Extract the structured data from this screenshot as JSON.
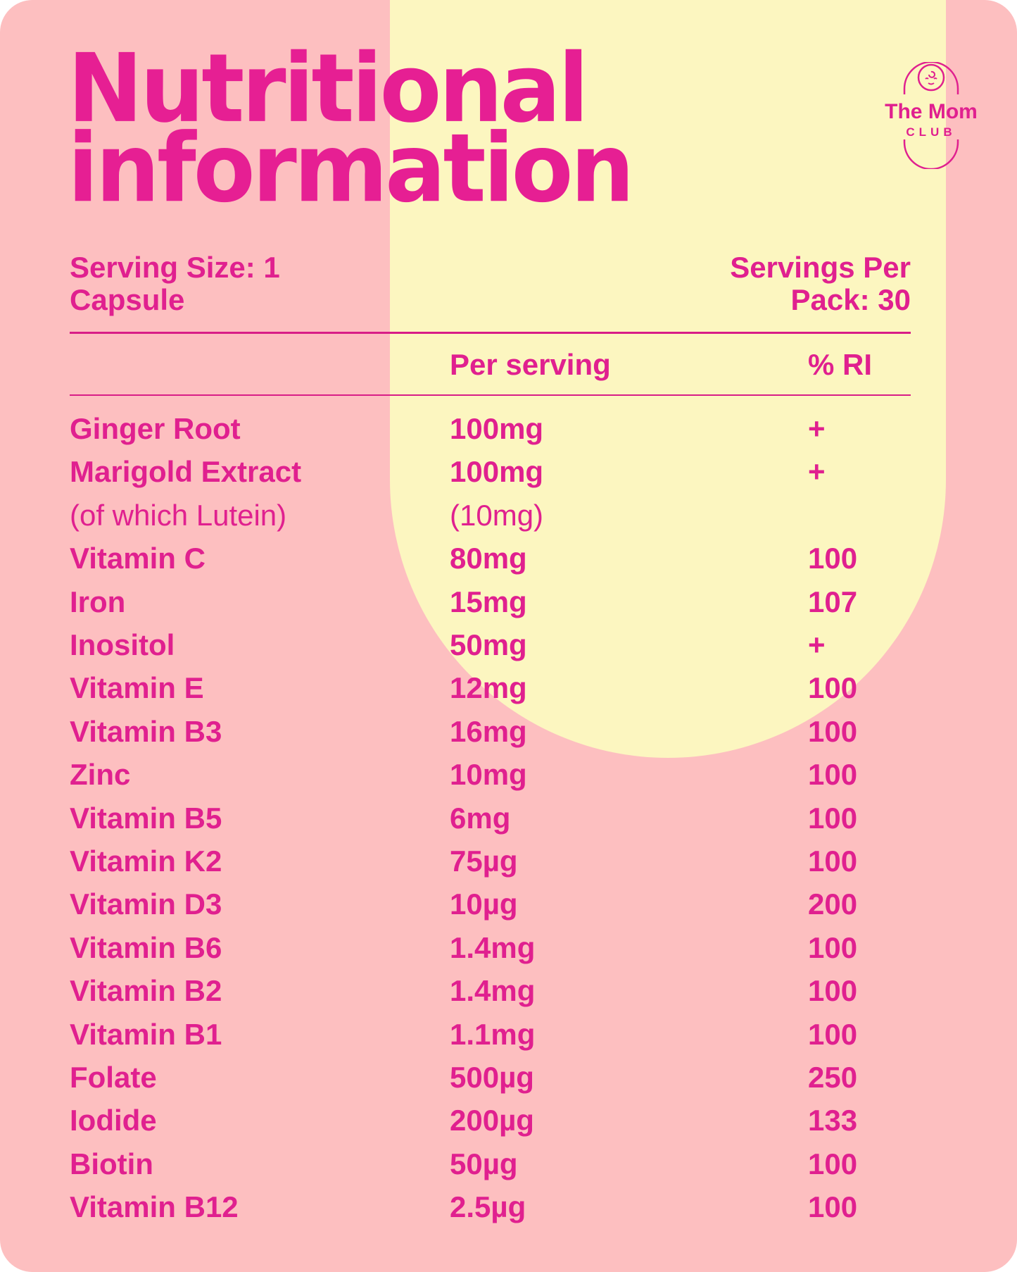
{
  "title_lines": [
    "Nutritional",
    "information"
  ],
  "brand": {
    "line1": "The Mom",
    "line2": "CLUB",
    "icon": "baby-capsule-logo-icon"
  },
  "serving_size": {
    "line1": "Serving Size: 1",
    "line2": "Capsule"
  },
  "servings_per_pack": {
    "line1": "Servings Per",
    "line2": "Pack: 30"
  },
  "columns": {
    "per_serving": "Per serving",
    "ri": "% RI"
  },
  "rows": [
    {
      "name": "Ginger Root",
      "amount": "100mg",
      "ri": "+"
    },
    {
      "name": "Marigold Extract",
      "amount": "100mg",
      "ri": "+"
    },
    {
      "name": "(of which Lutein)",
      "amount": "(10mg)",
      "ri": ""
    },
    {
      "name": "Vitamin C",
      "amount": "80mg",
      "ri": "100"
    },
    {
      "name": "Iron",
      "amount": "15mg",
      "ri": "107"
    },
    {
      "name": "Inositol",
      "amount": "50mg",
      "ri": "+"
    },
    {
      "name": "Vitamin E",
      "amount": "12mg",
      "ri": "100"
    },
    {
      "name": "Vitamin B3",
      "amount": "16mg",
      "ri": "100"
    },
    {
      "name": "Zinc",
      "amount": "10mg",
      "ri": "100"
    },
    {
      "name": "Vitamin B5",
      "amount": "6mg",
      "ri": "100"
    },
    {
      "name": "Vitamin K2",
      "amount": "75µg",
      "ri": "100"
    },
    {
      "name": "Vitamin D3",
      "amount": "10µg",
      "ri": "200"
    },
    {
      "name": "Vitamin B6",
      "amount": "1.4mg",
      "ri": "100"
    },
    {
      "name": "Vitamin B2",
      "amount": "1.4mg",
      "ri": "100"
    },
    {
      "name": "Vitamin B1",
      "amount": "1.1mg",
      "ri": "100"
    },
    {
      "name": "Folate",
      "amount": "500µg",
      "ri": "250"
    },
    {
      "name": "Iodide",
      "amount": "200µg",
      "ri": "133"
    },
    {
      "name": "Biotin",
      "amount": "50µg",
      "ri": "100"
    },
    {
      "name": "Vitamin B12",
      "amount": "2.5µg",
      "ri": "100"
    }
  ],
  "colors": {
    "background": "#fdbfc0",
    "accent_panel": "#fcf6c0",
    "text": "#e0208f"
  }
}
